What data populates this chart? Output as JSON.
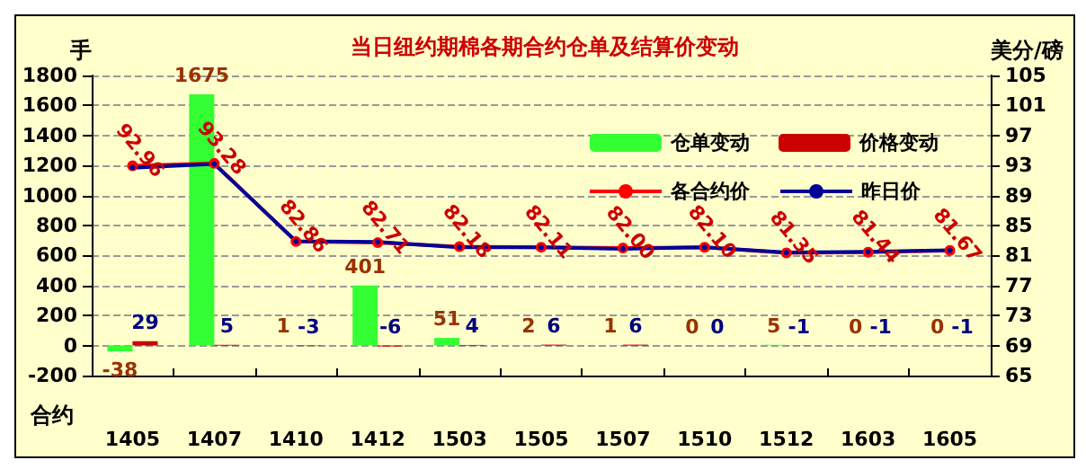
{
  "chart_data": {
    "type": "bar",
    "title": "当日纽约期棉各期合约仓单及结算价变动",
    "xlabel": "合约",
    "ylabel": "手",
    "y2label": "美分/磅",
    "categories": [
      "1405",
      "1407",
      "1410",
      "1412",
      "1503",
      "1505",
      "1507",
      "1510",
      "1512",
      "1603",
      "1605"
    ],
    "series": [
      {
        "name": "仓单变动",
        "color": "#33ff33",
        "values": [
          -38,
          1675,
          1,
          401,
          51,
          2,
          1,
          0,
          5,
          0,
          0
        ],
        "value_labels": [
          "-38",
          "1675",
          "1",
          "401",
          "51",
          "2",
          "1",
          "0",
          "5",
          "0",
          "0"
        ]
      },
      {
        "name": "价格变动",
        "color": "#cc0000",
        "values": [
          29,
          5,
          -3,
          -6,
          4,
          6,
          6,
          0,
          -1,
          -1,
          -1
        ],
        "value_labels": [
          "29",
          "5",
          "-3",
          "-6",
          "4",
          "6",
          "6",
          "0",
          "-1",
          "-1",
          "-1"
        ]
      },
      {
        "name": "各合约价",
        "type": "line",
        "axis": "y2",
        "color": "#ff0000",
        "marker": "circle",
        "values": [
          92.96,
          93.28,
          82.86,
          82.71,
          82.18,
          82.11,
          82.0,
          82.1,
          81.35,
          81.44,
          81.67
        ],
        "value_labels": [
          "92.96",
          "93.28",
          "82.86",
          "82.71",
          "82.18",
          "82.11",
          "82.00",
          "82.10",
          "81.35",
          "81.44",
          "81.67"
        ]
      },
      {
        "name": "昨日价",
        "type": "line",
        "axis": "y2",
        "color": "#000099",
        "marker": "circle",
        "values": [
          92.7,
          93.2,
          82.9,
          82.8,
          82.1,
          82.1,
          81.9,
          82.1,
          81.4,
          81.5,
          81.7
        ]
      }
    ],
    "ylim": [
      -200,
      1800
    ],
    "yticks": [
      -200,
      0,
      200,
      400,
      600,
      800,
      1000,
      1200,
      1400,
      1600,
      1800
    ],
    "y2lim": [
      65,
      105
    ],
    "y2ticks": [
      65,
      69,
      73,
      77,
      81,
      85,
      89,
      93,
      97,
      101,
      105
    ],
    "grid": "y",
    "legend": "top right"
  }
}
